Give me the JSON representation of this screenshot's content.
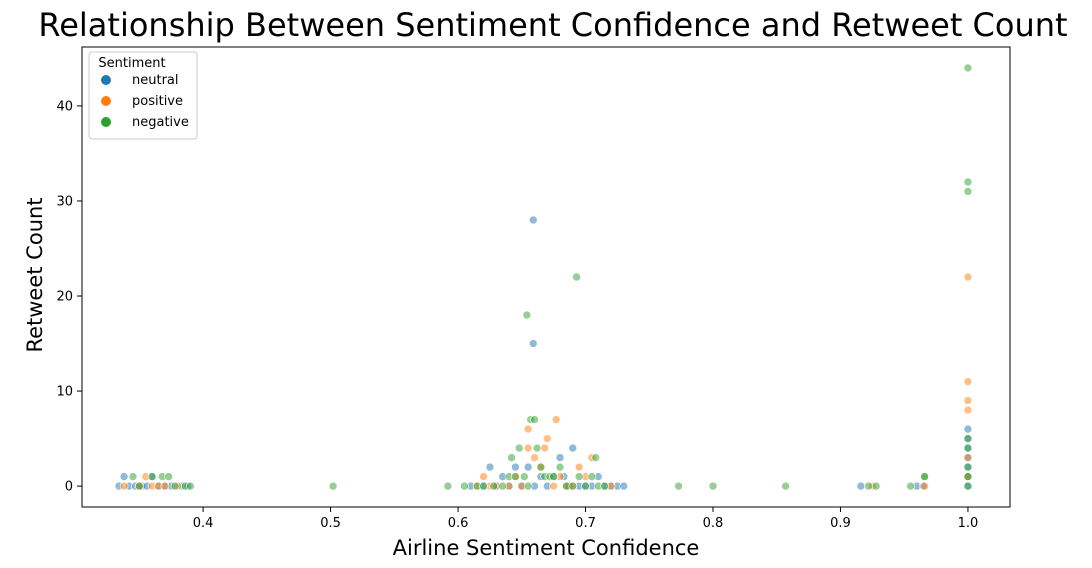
{
  "chart_data": {
    "type": "scatter",
    "title": "Relationship Between Sentiment Confidence and Retweet Count",
    "xlabel": "Airline Sentiment Confidence",
    "ylabel": "Retweet Count",
    "xlim": [
      0.305,
      1.033
    ],
    "ylim": [
      -2.2,
      46.2
    ],
    "xticks": [
      0.4,
      0.5,
      0.6,
      0.7,
      0.8,
      0.9,
      1.0
    ],
    "xtick_labels": [
      "0.4",
      "0.5",
      "0.6",
      "0.7",
      "0.8",
      "0.9",
      "1.0"
    ],
    "yticks": [
      0,
      10,
      20,
      30,
      40
    ],
    "ytick_labels": [
      "0",
      "10",
      "20",
      "30",
      "40"
    ],
    "grid": false,
    "legend": {
      "title": "Sentiment",
      "placement": "upper-left"
    },
    "series": [
      {
        "name": "neutral",
        "color": "#1f77b4",
        "points": [
          [
            0.334,
            0
          ],
          [
            0.338,
            1
          ],
          [
            0.342,
            0
          ],
          [
            0.347,
            0
          ],
          [
            0.352,
            0
          ],
          [
            0.356,
            0
          ],
          [
            0.36,
            1
          ],
          [
            0.365,
            0
          ],
          [
            0.37,
            0
          ],
          [
            0.375,
            0
          ],
          [
            0.383,
            0
          ],
          [
            0.388,
            0
          ],
          [
            0.61,
            0
          ],
          [
            0.62,
            0
          ],
          [
            0.625,
            2
          ],
          [
            0.63,
            0
          ],
          [
            0.635,
            1
          ],
          [
            0.64,
            0
          ],
          [
            0.645,
            2
          ],
          [
            0.65,
            0
          ],
          [
            0.655,
            2
          ],
          [
            0.66,
            0
          ],
          [
            0.665,
            1
          ],
          [
            0.67,
            0
          ],
          [
            0.675,
            1
          ],
          [
            0.68,
            3
          ],
          [
            0.683,
            1
          ],
          [
            0.687,
            0
          ],
          [
            0.69,
            4
          ],
          [
            0.695,
            0
          ],
          [
            0.7,
            0
          ],
          [
            0.705,
            0
          ],
          [
            0.71,
            1
          ],
          [
            0.715,
            0
          ],
          [
            0.72,
            0
          ],
          [
            0.725,
            0
          ],
          [
            0.73,
            0
          ],
          [
            0.659,
            28
          ],
          [
            0.659,
            15
          ],
          [
            0.916,
            0
          ],
          [
            0.96,
            0
          ],
          [
            0.965,
            0
          ],
          [
            1.0,
            6
          ],
          [
            1.0,
            5
          ],
          [
            1.0,
            4
          ],
          [
            1.0,
            3
          ],
          [
            1.0,
            2
          ],
          [
            1.0,
            1
          ],
          [
            1.0,
            0
          ]
        ]
      },
      {
        "name": "positive",
        "color": "#ff7f0e",
        "points": [
          [
            0.338,
            0
          ],
          [
            0.35,
            0
          ],
          [
            0.355,
            1
          ],
          [
            0.36,
            0
          ],
          [
            0.365,
            0
          ],
          [
            0.37,
            0
          ],
          [
            0.38,
            0
          ],
          [
            0.615,
            0
          ],
          [
            0.62,
            1
          ],
          [
            0.625,
            0
          ],
          [
            0.63,
            0
          ],
          [
            0.64,
            0
          ],
          [
            0.645,
            1
          ],
          [
            0.65,
            0
          ],
          [
            0.655,
            4
          ],
          [
            0.655,
            6
          ],
          [
            0.66,
            3
          ],
          [
            0.665,
            2
          ],
          [
            0.668,
            4
          ],
          [
            0.67,
            5
          ],
          [
            0.675,
            0
          ],
          [
            0.677,
            7
          ],
          [
            0.68,
            1
          ],
          [
            0.685,
            0
          ],
          [
            0.69,
            0
          ],
          [
            0.695,
            2
          ],
          [
            0.7,
            1
          ],
          [
            0.705,
            3
          ],
          [
            0.72,
            0
          ],
          [
            0.925,
            0
          ],
          [
            0.966,
            0
          ],
          [
            1.0,
            22
          ],
          [
            1.0,
            11
          ],
          [
            1.0,
            9
          ],
          [
            1.0,
            8
          ],
          [
            1.0,
            3
          ],
          [
            1.0,
            1
          ]
        ]
      },
      {
        "name": "negative",
        "color": "#2ca02c",
        "points": [
          [
            0.345,
            1
          ],
          [
            0.35,
            0
          ],
          [
            0.36,
            1
          ],
          [
            0.368,
            1
          ],
          [
            0.373,
            1
          ],
          [
            0.378,
            0
          ],
          [
            0.386,
            0
          ],
          [
            0.39,
            0
          ],
          [
            0.502,
            0
          ],
          [
            0.592,
            0
          ],
          [
            0.605,
            0
          ],
          [
            0.615,
            0
          ],
          [
            0.62,
            0
          ],
          [
            0.628,
            0
          ],
          [
            0.635,
            0
          ],
          [
            0.64,
            1
          ],
          [
            0.642,
            3
          ],
          [
            0.645,
            1
          ],
          [
            0.648,
            4
          ],
          [
            0.652,
            1
          ],
          [
            0.655,
            0
          ],
          [
            0.657,
            7
          ],
          [
            0.66,
            7
          ],
          [
            0.662,
            4
          ],
          [
            0.665,
            2
          ],
          [
            0.668,
            1
          ],
          [
            0.672,
            1
          ],
          [
            0.675,
            1
          ],
          [
            0.68,
            2
          ],
          [
            0.685,
            0
          ],
          [
            0.69,
            0
          ],
          [
            0.695,
            1
          ],
          [
            0.7,
            0
          ],
          [
            0.705,
            1
          ],
          [
            0.708,
            3
          ],
          [
            0.71,
            0
          ],
          [
            0.715,
            0
          ],
          [
            0.654,
            18
          ],
          [
            0.693,
            22
          ],
          [
            0.773,
            0
          ],
          [
            0.8,
            0
          ],
          [
            0.857,
            0
          ],
          [
            0.922,
            0
          ],
          [
            0.928,
            0
          ],
          [
            0.955,
            0
          ],
          [
            0.966,
            1
          ],
          [
            0.966,
            1
          ],
          [
            1.0,
            44
          ],
          [
            1.0,
            32
          ],
          [
            1.0,
            31
          ],
          [
            1.0,
            5
          ],
          [
            1.0,
            4
          ],
          [
            1.0,
            2
          ],
          [
            1.0,
            1
          ],
          [
            1.0,
            0
          ]
        ]
      }
    ]
  }
}
